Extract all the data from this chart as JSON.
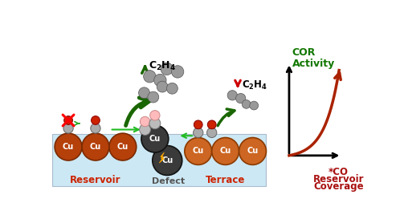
{
  "bg_color": "#ffffff",
  "surface_color": "#cce8f4",
  "cu_reservoir_color": "#b5400a",
  "cu_defect_color": "#3a3a3a",
  "cu_terrace_color": "#cc6622",
  "arrow_green_dark": "#1a6600",
  "arrow_green_light": "#22aa22",
  "arrow_red": "#cc0000",
  "co_gray": "#aaaaaa",
  "co_red": "#cc2200",
  "co_pink": "#ffaaaa",
  "label_reservoir": "Reservoir",
  "label_defect": "Defect",
  "label_terrace": "Terrace",
  "cor_color": "#117700",
  "co_label_color": "#aa1111",
  "label_cor_line1": "COR",
  "label_cor_line2": "Activity",
  "label_co_line1": "*CO",
  "label_co_line2": "Reservoir",
  "label_co_line3": "Coverage"
}
